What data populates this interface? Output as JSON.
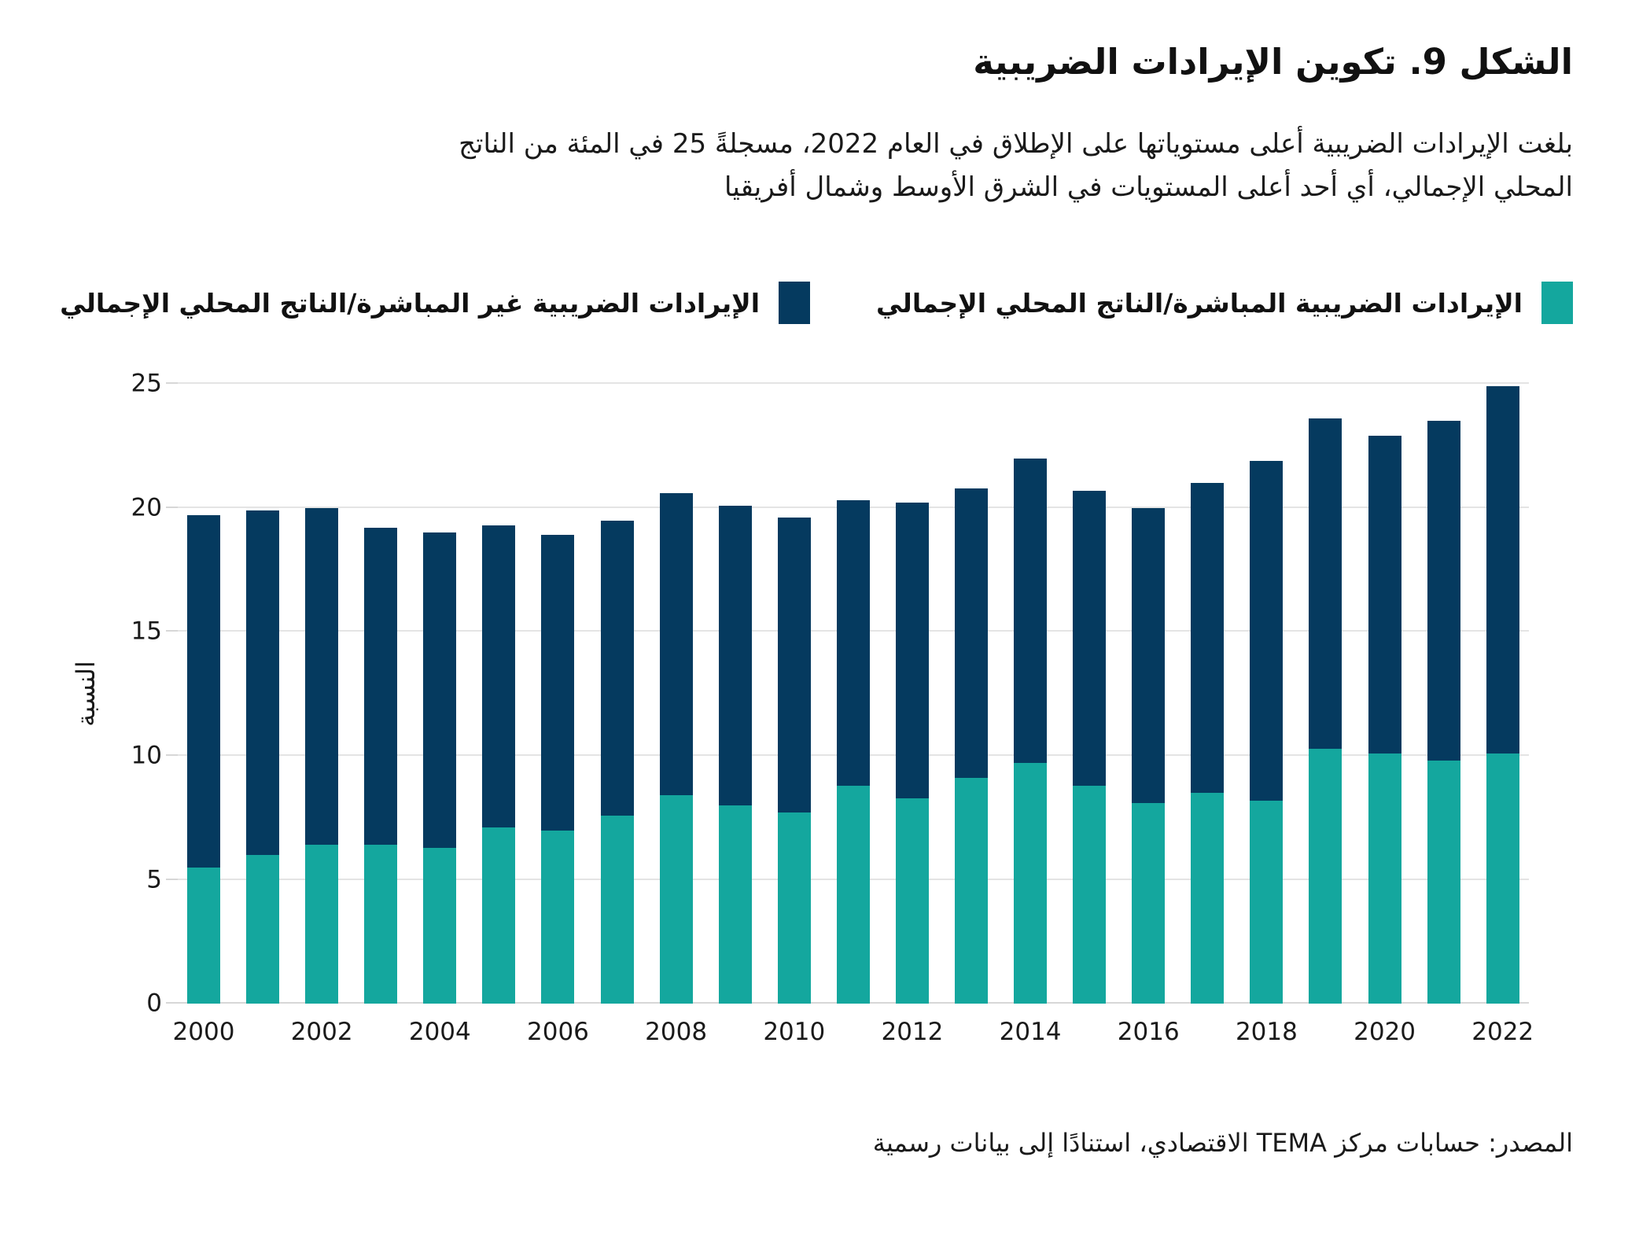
{
  "header": {
    "title": "الشكل 9. تكوين الإيرادات الضريبية",
    "subtitle_lines": [
      "بلغت الإيرادات الضريبية أعلى مستوياتها على الإطلاق في العام 2022، مسجلةً 25 في المئة من الناتج",
      "المحلي الإجمالي، أي أحد أعلى المستويات في الشرق الأوسط وشمال أفريقيا"
    ]
  },
  "legend": [
    {
      "label": "الإيرادات الضريبية المباشرة/الناتج المحلي الإجمالي",
      "color": "#14A79E"
    },
    {
      "label": "الإيرادات الضريبية غير المباشرة/الناتج المحلي الإجمالي",
      "color": "#053A5F"
    }
  ],
  "chart_data": {
    "type": "bar",
    "stacked": true,
    "title": "الشكل 9. تكوين الإيرادات الضريبية",
    "ylabel": "النسبة",
    "xlabel": "",
    "ylim": [
      0,
      25
    ],
    "yticks": [
      0,
      5,
      10,
      15,
      20,
      25
    ],
    "grid": "horizontal",
    "legend_position": "top",
    "categories": [
      2000,
      2001,
      2002,
      2003,
      2004,
      2005,
      2006,
      2007,
      2008,
      2009,
      2010,
      2011,
      2012,
      2013,
      2014,
      2015,
      2016,
      2017,
      2018,
      2019,
      2020,
      2021,
      2022
    ],
    "xtick_labels": [
      "2000",
      "2002",
      "2004",
      "2006",
      "2008",
      "2010",
      "2012",
      "2014",
      "2016",
      "2018",
      "2020",
      "2022"
    ],
    "series": [
      {
        "name": "الإيرادات الضريبية المباشرة/الناتج المحلي الإجمالي",
        "color": "#14A79E",
        "values": [
          5.5,
          6.0,
          6.4,
          6.4,
          6.3,
          7.1,
          7.0,
          7.6,
          8.4,
          8.0,
          7.7,
          8.8,
          8.3,
          9.1,
          9.7,
          8.8,
          8.1,
          8.5,
          8.2,
          10.3,
          10.1,
          9.8,
          10.1
        ]
      },
      {
        "name": "الإيرادات الضريبية غير المباشرة/الناتج المحلي الإجمالي",
        "color": "#053A5F",
        "values": [
          14.2,
          13.9,
          13.6,
          12.8,
          12.7,
          12.2,
          11.9,
          11.9,
          12.2,
          12.1,
          11.9,
          11.5,
          11.9,
          11.7,
          12.3,
          11.9,
          11.9,
          12.5,
          13.7,
          13.3,
          12.8,
          13.7,
          14.8
        ]
      }
    ],
    "totals": [
      19.7,
      19.9,
      20.0,
      19.2,
      19.0,
      19.3,
      18.9,
      19.5,
      20.6,
      20.1,
      19.6,
      20.3,
      20.2,
      20.8,
      22.0,
      20.7,
      20.0,
      21.0,
      21.9,
      23.6,
      22.9,
      23.5,
      24.9
    ]
  },
  "source": "المصدر: حسابات مركز TEMA الاقتصادي، استنادًا إلى بيانات رسمية"
}
